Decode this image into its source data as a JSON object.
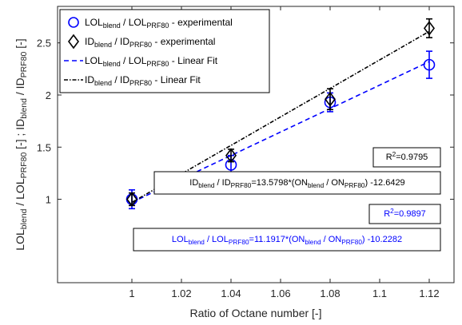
{
  "chart_data": {
    "type": "scatter",
    "xlabel": "Ratio of Octane number [-]",
    "ylabel": {
      "parts": [
        {
          "t": "LOL",
          "s": "n"
        },
        {
          "t": "blend",
          "s": "sub"
        },
        {
          "t": " / LOL",
          "s": "n"
        },
        {
          "t": "PRF80",
          "s": "sub"
        },
        {
          "t": " [-] ; ID",
          "s": "n"
        },
        {
          "t": "blend",
          "s": "sub"
        },
        {
          "t": " / ID",
          "s": "n"
        },
        {
          "t": "PRF80",
          "s": "sub"
        },
        {
          "t": " [-]",
          "s": "n"
        }
      ]
    },
    "xlim": [
      0.97,
      1.13
    ],
    "ylim": [
      0.2,
      2.85
    ],
    "xticks": [
      1,
      1.02,
      1.04,
      1.06,
      1.08,
      1.1,
      1.12
    ],
    "xtick_labels": [
      "1",
      "1.02",
      "1.04",
      "1.06",
      "1.08",
      "1.1",
      "1.12"
    ],
    "yticks": [
      1,
      1.5,
      2,
      2.5
    ],
    "ytick_labels": [
      "1",
      "1.5",
      "2",
      "2.5"
    ],
    "grid": false,
    "legend_position": "top-left",
    "series": [
      {
        "key": "lol_exp",
        "marker": "circle",
        "color": "#0000ff",
        "x": [
          1,
          1.04,
          1.08,
          1.12
        ],
        "y": [
          1.0,
          1.33,
          1.93,
          2.29
        ],
        "err": [
          0.09,
          0.09,
          0.09,
          0.13
        ]
      },
      {
        "key": "id_exp",
        "marker": "diamond",
        "color": "#000000",
        "x": [
          1,
          1.04,
          1.08,
          1.12
        ],
        "y": [
          1.0,
          1.42,
          1.96,
          2.64
        ],
        "err": [
          0.06,
          0.06,
          0.1,
          0.09
        ]
      }
    ],
    "fits": [
      {
        "key": "lol_fit",
        "color": "#0000ff",
        "dash": "6,4",
        "x": [
          1,
          1.12
        ],
        "y": [
          0.97,
          2.32
        ]
      },
      {
        "key": "id_fit",
        "color": "#000000",
        "dash": "5,2,1.5,2",
        "x": [
          1,
          1.12
        ],
        "y": [
          0.97,
          2.61
        ]
      }
    ],
    "legend": [
      {
        "symbol": "circle",
        "color": "#0000ff",
        "parts": [
          {
            "t": "LOL",
            "s": "n"
          },
          {
            "t": "blend",
            "s": "sub"
          },
          {
            "t": " / LOL",
            "s": "n"
          },
          {
            "t": "PRF80",
            "s": "sub"
          },
          {
            "t": " - experimental",
            "s": "n"
          }
        ]
      },
      {
        "symbol": "diamond",
        "color": "#000000",
        "parts": [
          {
            "t": "ID",
            "s": "n"
          },
          {
            "t": "blend",
            "s": "sub"
          },
          {
            "t": " / ID",
            "s": "n"
          },
          {
            "t": "PRF80",
            "s": "sub"
          },
          {
            "t": " - experimental",
            "s": "n"
          }
        ]
      },
      {
        "symbol": "dash",
        "color": "#0000ff",
        "parts": [
          {
            "t": "LOL",
            "s": "n"
          },
          {
            "t": "blend",
            "s": "sub"
          },
          {
            "t": " / LOL",
            "s": "n"
          },
          {
            "t": "PRF80",
            "s": "sub"
          },
          {
            "t": " - Linear Fit",
            "s": "n"
          }
        ]
      },
      {
        "symbol": "dashdot",
        "color": "#000000",
        "parts": [
          {
            "t": "ID",
            "s": "n"
          },
          {
            "t": "blend",
            "s": "sub"
          },
          {
            "t": " / ID",
            "s": "n"
          },
          {
            "t": "PRF80",
            "s": "sub"
          },
          {
            "t": " - Linear Fit",
            "s": "n"
          }
        ]
      }
    ],
    "annotations": [
      {
        "key": "r2_id",
        "color": "#000000",
        "parts": [
          {
            "t": "R",
            "s": "n"
          },
          {
            "t": "2",
            "s": "sup"
          },
          {
            "t": "=0.9795",
            "s": "n"
          }
        ]
      },
      {
        "key": "eq_id",
        "color": "#000000",
        "parts": [
          {
            "t": "ID",
            "s": "n"
          },
          {
            "t": "blend",
            "s": "sub"
          },
          {
            "t": " / ID",
            "s": "n"
          },
          {
            "t": "PRF80",
            "s": "sub"
          },
          {
            "t": "=13.5798*(ON",
            "s": "n"
          },
          {
            "t": "blend",
            "s": "sub"
          },
          {
            "t": " / ON",
            "s": "n"
          },
          {
            "t": "PRF80",
            "s": "sub"
          },
          {
            "t": ") -12.6429",
            "s": "n"
          }
        ]
      },
      {
        "key": "r2_lol",
        "color": "#0000ff",
        "parts": [
          {
            "t": "R",
            "s": "n"
          },
          {
            "t": "2",
            "s": "sup"
          },
          {
            "t": "=0.9897",
            "s": "n"
          }
        ]
      },
      {
        "key": "eq_lol",
        "color": "#0000ff",
        "parts": [
          {
            "t": "LOL",
            "s": "n"
          },
          {
            "t": "blend",
            "s": "sub"
          },
          {
            "t": " / LOL",
            "s": "n"
          },
          {
            "t": "PRF80",
            "s": "sub"
          },
          {
            "t": "=11.1917*(ON",
            "s": "n"
          },
          {
            "t": "blend",
            "s": "sub"
          },
          {
            "t": " / ON",
            "s": "n"
          },
          {
            "t": "PRF80",
            "s": "sub"
          },
          {
            "t": ") -10.2282",
            "s": "n"
          }
        ]
      }
    ]
  }
}
